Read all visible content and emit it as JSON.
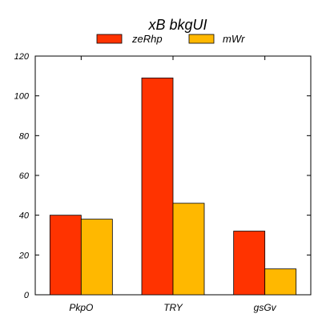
{
  "chart_data": {
    "type": "bar",
    "title": "xB  bkgUI",
    "categories": [
      "PkpO",
      "TRY",
      "gsGv"
    ],
    "series": [
      {
        "name": "zeRhp",
        "color": "#ff3300",
        "values": [
          40,
          109,
          32
        ]
      },
      {
        "name": "mWr",
        "color": "#ffb800",
        "values": [
          38,
          46,
          13
        ]
      }
    ],
    "xlabel": "",
    "ylabel": "",
    "ylim": [
      0,
      120
    ],
    "yticks": [
      0,
      20,
      40,
      60,
      80,
      100,
      120
    ],
    "grid": false,
    "legend_position": "top-center"
  }
}
